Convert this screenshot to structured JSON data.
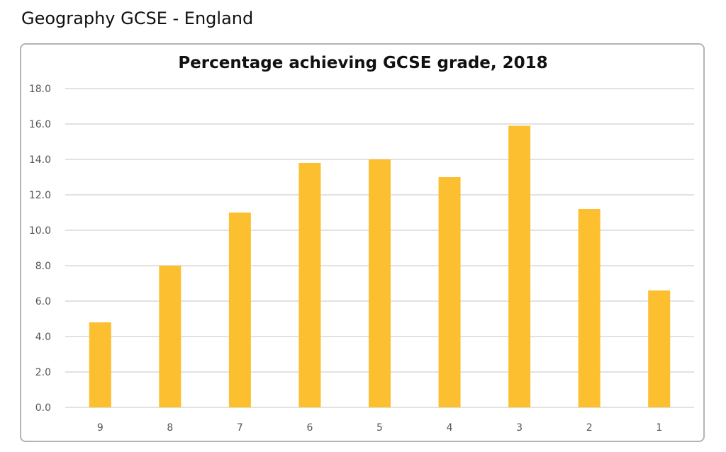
{
  "page": {
    "heading": "Geography GCSE - England"
  },
  "chart_data": {
    "type": "bar",
    "title": "Percentage achieving GCSE grade, 2018",
    "xlabel": "",
    "ylabel": "",
    "categories": [
      "9",
      "8",
      "7",
      "6",
      "5",
      "4",
      "3",
      "2",
      "1"
    ],
    "values": [
      4.8,
      8.0,
      11.0,
      13.8,
      14.0,
      13.0,
      15.9,
      11.2,
      6.6
    ],
    "ylim": [
      0,
      18
    ],
    "yticks": [
      "0.0",
      "2.0",
      "4.0",
      "6.0",
      "8.0",
      "10.0",
      "12.0",
      "14.0",
      "16.0",
      "18.0"
    ],
    "grid": true,
    "legend": "none",
    "bar_color": "#FCBF2F",
    "grid_color": "#D9D9D9"
  }
}
